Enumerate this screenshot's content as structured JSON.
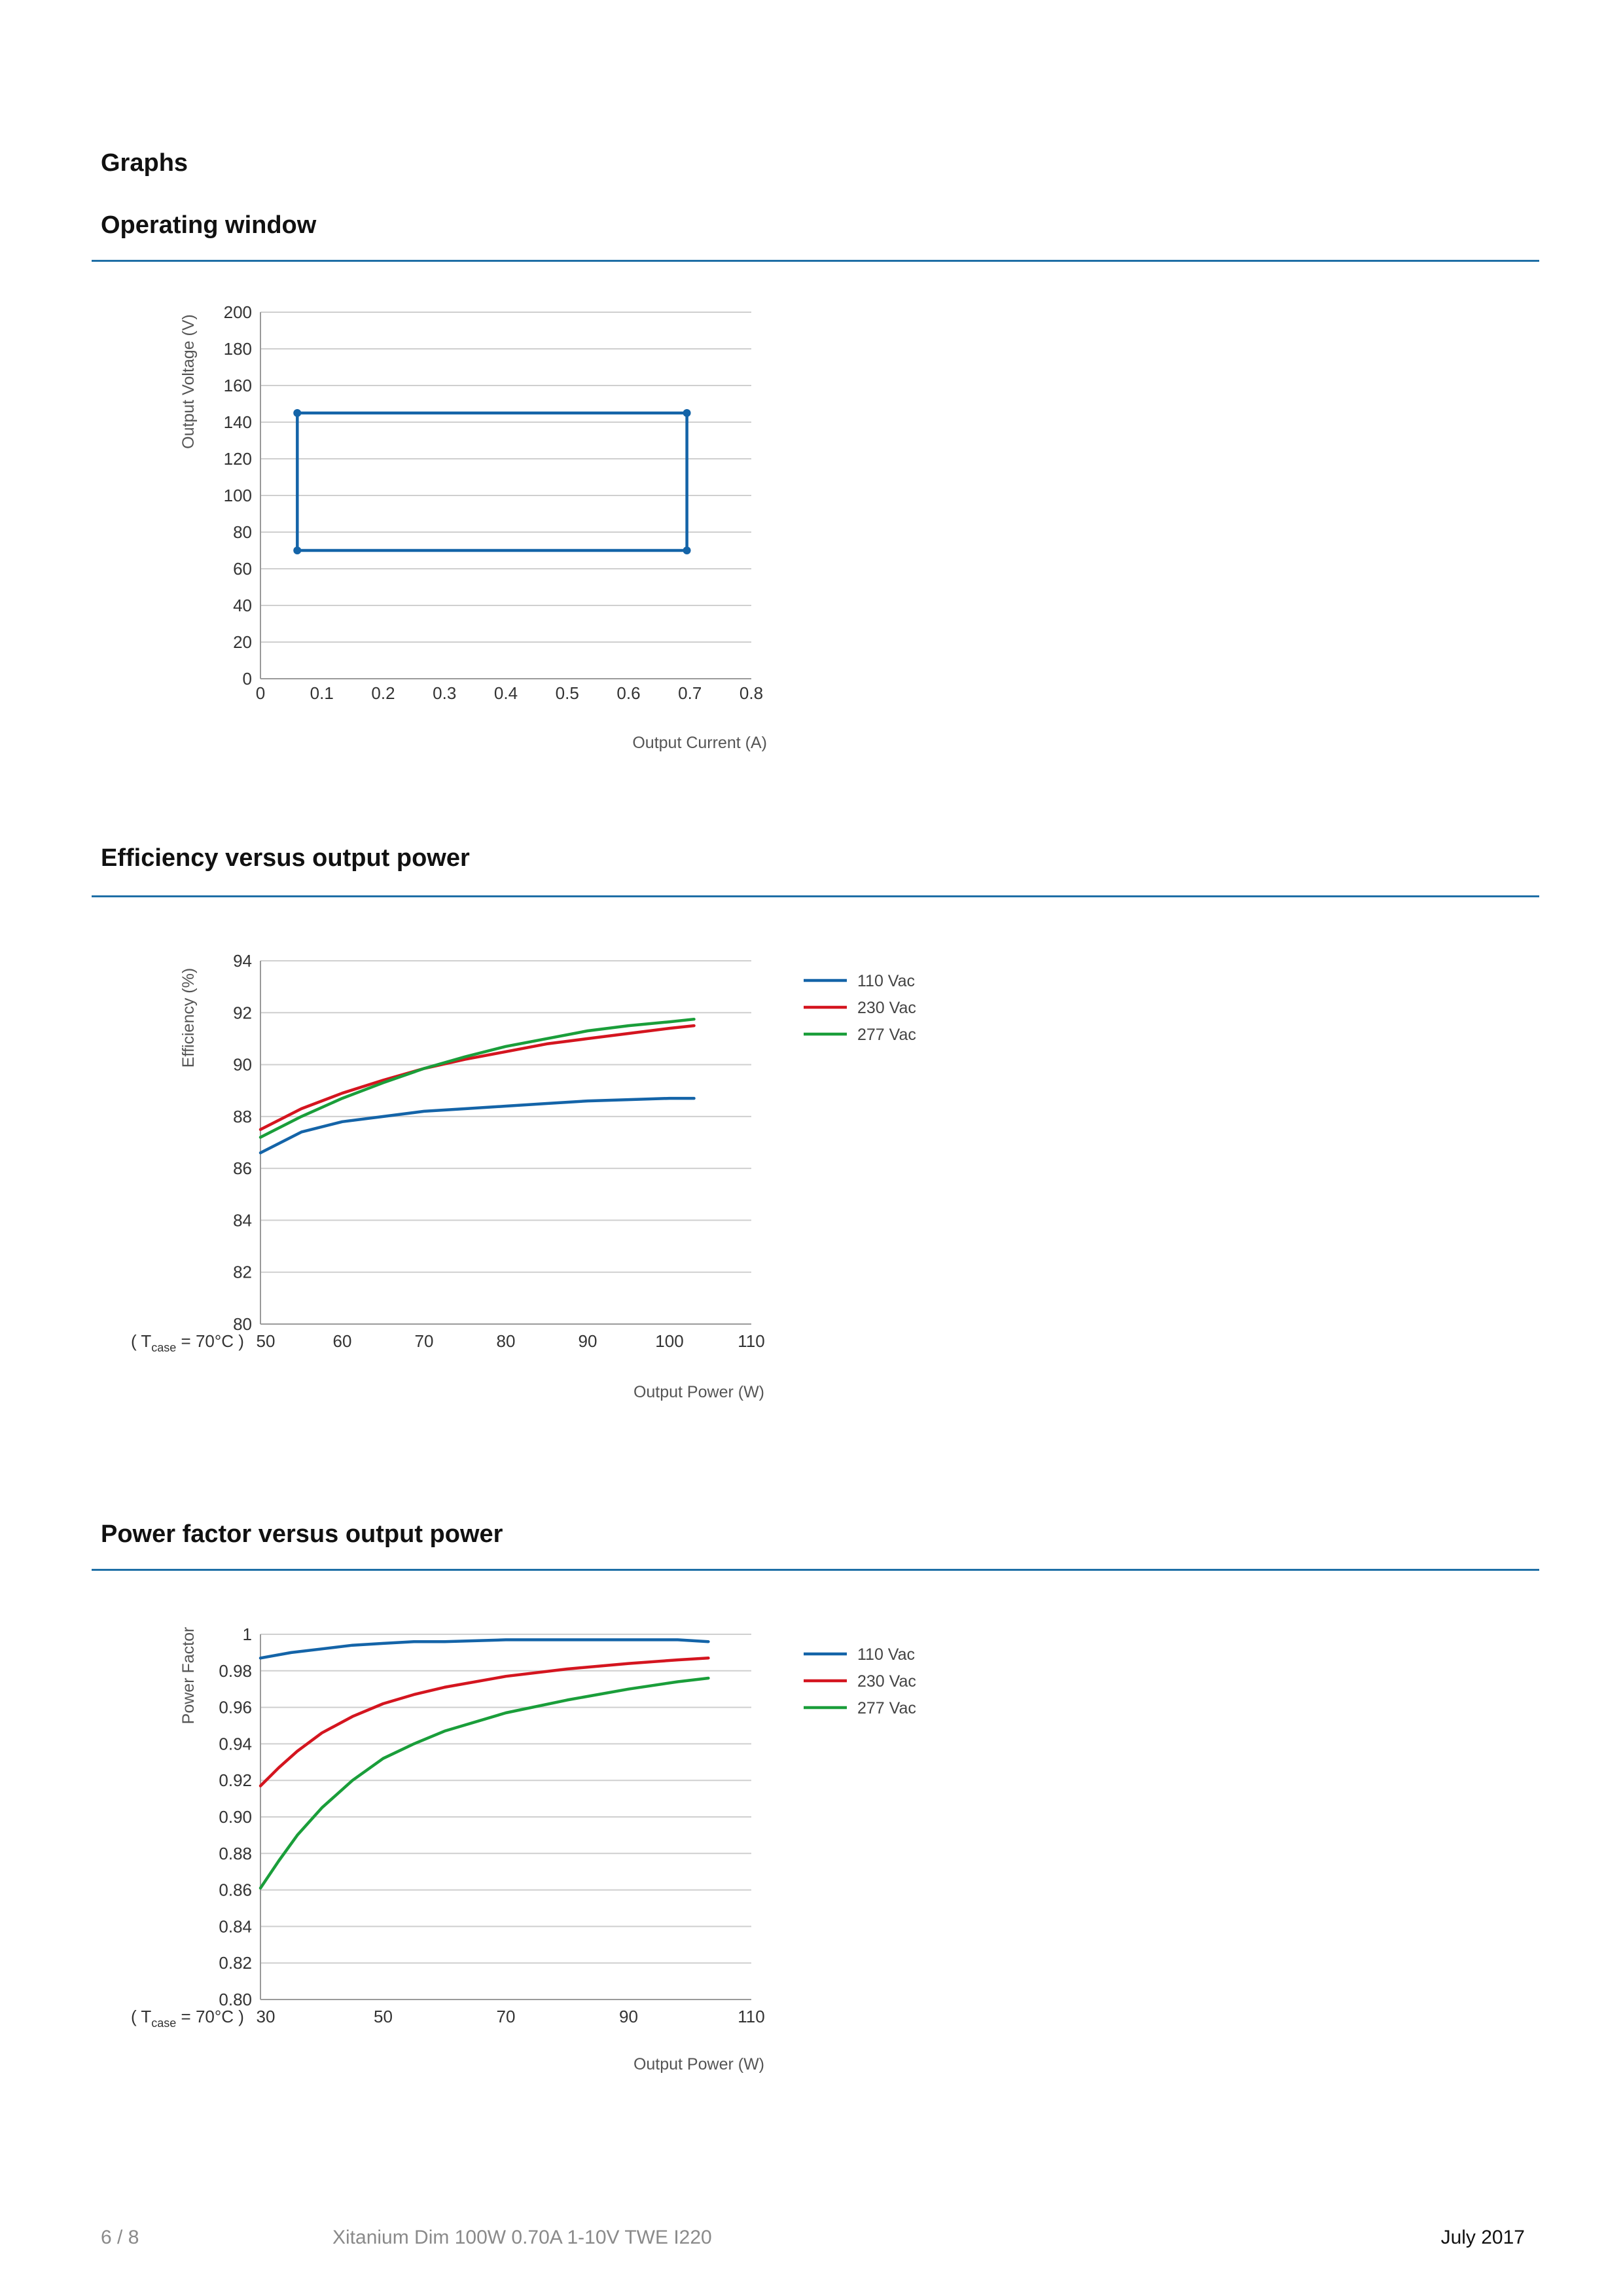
{
  "page_heading": "Graphs",
  "sections": [
    {
      "title": "Operating window"
    },
    {
      "title": "Efficiency versus output power"
    },
    {
      "title": "Power factor versus output power"
    }
  ],
  "footer": {
    "page": "6 / 8",
    "product": "Xitanium Dim 100W 0.70A 1-10V TWE I220",
    "date": "July 2017"
  },
  "colors": {
    "blue": "#1464a8",
    "red": "#d4151f",
    "green": "#1a9e3a",
    "rule": "#1f6fa6"
  },
  "chart_data": [
    {
      "type": "line",
      "xlabel": "Output Current (A)",
      "ylabel": "Output Voltage (V)",
      "xlim": [
        0,
        0.8
      ],
      "ylim": [
        0,
        200
      ],
      "xticks": [
        0,
        0.1,
        0.2,
        0.3,
        0.4,
        0.5,
        0.6,
        0.7,
        0.8
      ],
      "yticks": [
        0,
        20,
        40,
        60,
        80,
        100,
        120,
        140,
        160,
        180,
        200
      ],
      "grid": true,
      "series": [
        {
          "color": "#1464a8",
          "points": [
            [
              0.06,
              70
            ],
            [
              0.06,
              145
            ],
            [
              0.695,
              145
            ],
            [
              0.695,
              70
            ],
            [
              0.06,
              70
            ]
          ],
          "markers": [
            [
              0.06,
              70
            ],
            [
              0.06,
              145
            ],
            [
              0.695,
              145
            ],
            [
              0.695,
              70
            ]
          ]
        }
      ]
    },
    {
      "type": "line",
      "xlabel": "Output Power (W)",
      "ylabel": "Efficiency (%)",
      "note": {
        "prefix": "( T",
        "sub": "case",
        "suffix": " = 70°C )"
      },
      "xlim": [
        50,
        110
      ],
      "ylim": [
        80,
        94
      ],
      "xticks": [
        50,
        60,
        70,
        80,
        90,
        100,
        110
      ],
      "yticks": [
        80,
        82,
        84,
        86,
        88,
        90,
        92,
        94
      ],
      "grid": true,
      "legend": "right",
      "series": [
        {
          "name": "110 Vac",
          "color": "#1464a8",
          "points": [
            [
              50,
              86.6
            ],
            [
              55,
              87.4
            ],
            [
              60,
              87.8
            ],
            [
              65,
              88.0
            ],
            [
              70,
              88.2
            ],
            [
              75,
              88.3
            ],
            [
              80,
              88.4
            ],
            [
              85,
              88.5
            ],
            [
              90,
              88.6
            ],
            [
              95,
              88.65
            ],
            [
              100,
              88.7
            ],
            [
              103,
              88.7
            ]
          ]
        },
        {
          "name": "230 Vac",
          "color": "#d4151f",
          "points": [
            [
              50,
              87.5
            ],
            [
              55,
              88.3
            ],
            [
              60,
              88.9
            ],
            [
              65,
              89.4
            ],
            [
              70,
              89.85
            ],
            [
              75,
              90.2
            ],
            [
              80,
              90.5
            ],
            [
              85,
              90.8
            ],
            [
              90,
              91.0
            ],
            [
              95,
              91.2
            ],
            [
              100,
              91.4
            ],
            [
              103,
              91.5
            ]
          ]
        },
        {
          "name": "277 Vac",
          "color": "#1a9e3a",
          "points": [
            [
              50,
              87.2
            ],
            [
              55,
              88.0
            ],
            [
              60,
              88.7
            ],
            [
              65,
              89.3
            ],
            [
              70,
              89.85
            ],
            [
              75,
              90.3
            ],
            [
              80,
              90.7
            ],
            [
              85,
              91.0
            ],
            [
              90,
              91.3
            ],
            [
              95,
              91.5
            ],
            [
              100,
              91.65
            ],
            [
              103,
              91.75
            ]
          ]
        }
      ]
    },
    {
      "type": "line",
      "xlabel": "Output Power (W)",
      "ylabel": "Power Factor",
      "note": {
        "prefix": "( T",
        "sub": "case",
        "suffix": " = 70°C )"
      },
      "xlim": [
        30,
        110
      ],
      "ylim": [
        0.8,
        1
      ],
      "xticks": [
        30,
        50,
        70,
        90,
        110
      ],
      "xtick_labels": [
        "30",
        "50",
        "70",
        "90",
        "110"
      ],
      "yticks": [
        0.8,
        0.82,
        0.84,
        0.86,
        0.88,
        0.9,
        0.92,
        0.94,
        0.96,
        0.98,
        1
      ],
      "ytick_labels": [
        "0.80",
        "0.82",
        "0.84",
        "0.86",
        "0.88",
        "0.90",
        "0.92",
        "0.94",
        "0.96",
        "0.98",
        "1"
      ],
      "grid": true,
      "legend": "right",
      "series": [
        {
          "name": "110 Vac",
          "color": "#1464a8",
          "points": [
            [
              30,
              0.987
            ],
            [
              35,
              0.99
            ],
            [
              40,
              0.992
            ],
            [
              45,
              0.994
            ],
            [
              50,
              0.995
            ],
            [
              55,
              0.996
            ],
            [
              60,
              0.996
            ],
            [
              70,
              0.997
            ],
            [
              80,
              0.997
            ],
            [
              90,
              0.997
            ],
            [
              98,
              0.997
            ],
            [
              103,
              0.996
            ]
          ]
        },
        {
          "name": "230 Vac",
          "color": "#d4151f",
          "points": [
            [
              30,
              0.917
            ],
            [
              33,
              0.927
            ],
            [
              36,
              0.936
            ],
            [
              40,
              0.946
            ],
            [
              45,
              0.955
            ],
            [
              50,
              0.962
            ],
            [
              55,
              0.967
            ],
            [
              60,
              0.971
            ],
            [
              70,
              0.977
            ],
            [
              80,
              0.981
            ],
            [
              90,
              0.984
            ],
            [
              98,
              0.986
            ],
            [
              103,
              0.987
            ]
          ]
        },
        {
          "name": "277 Vac",
          "color": "#1a9e3a",
          "points": [
            [
              30,
              0.861
            ],
            [
              33,
              0.876
            ],
            [
              36,
              0.89
            ],
            [
              40,
              0.905
            ],
            [
              45,
              0.92
            ],
            [
              50,
              0.932
            ],
            [
              55,
              0.94
            ],
            [
              60,
              0.947
            ],
            [
              70,
              0.957
            ],
            [
              80,
              0.964
            ],
            [
              90,
              0.97
            ],
            [
              98,
              0.974
            ],
            [
              103,
              0.976
            ]
          ]
        }
      ]
    }
  ]
}
